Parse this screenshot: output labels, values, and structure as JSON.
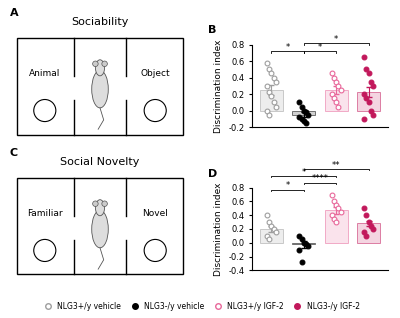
{
  "chart_data": [
    {
      "type": "bar",
      "panel": "B",
      "ylabel": "Discrimination index",
      "categories": [
        null,
        null,
        null,
        null
      ],
      "ylim": [
        -0.2,
        0.8
      ],
      "yticks": [
        {
          "value": -0.2,
          "label": "-0.2"
        },
        {
          "value": 0,
          "label": "0.0"
        },
        {
          "value": 0.2,
          "label": "0.2"
        },
        {
          "value": 0.4,
          "label": "0.4"
        },
        {
          "value": 0.6,
          "label": "0.6"
        },
        {
          "value": 0.8,
          "label": "0.8"
        }
      ],
      "tick_labels": "y",
      "legend": "lower center",
      "series": [
        {
          "name": "NLG3+/y vehicle",
          "color": "#9e9e9e",
          "marker": "circle_open",
          "values": [
            0.25,
            null,
            null,
            null
          ],
          "errors": [
            0.06,
            null,
            null,
            null
          ],
          "points": [
            0.58,
            0.5,
            0.45,
            0.4,
            0.35,
            0.3,
            0.22,
            0.18,
            0.1,
            0.05,
            0.0,
            -0.05
          ]
        },
        {
          "name": "NLG3-/y vehicle",
          "color": "#000000",
          "marker": "circle_filled",
          "values": [
            null,
            -0.05,
            null,
            null
          ],
          "errors": [
            null,
            0.03,
            null,
            null
          ],
          "points": [
            0.1,
            0.05,
            0.0,
            -0.02,
            -0.05,
            -0.08,
            -0.1,
            -0.12,
            -0.15
          ]
        },
        {
          "name": "NLG3+/y IGF-2",
          "color": "#e8679a",
          "marker": "circle_open",
          "values": [
            null,
            null,
            0.25,
            null
          ],
          "errors": [
            null,
            null,
            0.05,
            null
          ],
          "points": [
            0.45,
            0.4,
            0.35,
            0.3,
            0.25,
            0.2,
            0.15,
            0.1,
            0.05
          ]
        },
        {
          "name": "NLG3-/y IGF-2",
          "color": "#c2185b",
          "marker": "circle_filled",
          "values": [
            null,
            null,
            null,
            0.23
          ],
          "errors": [
            null,
            null,
            null,
            0.06
          ],
          "points": [
            0.65,
            0.5,
            0.45,
            0.35,
            0.3,
            0.2,
            0.15,
            0.1,
            0.0,
            -0.05,
            -0.1
          ]
        }
      ],
      "significance": [
        {
          "from": 0,
          "to": 1,
          "label": "*",
          "level": 0
        },
        {
          "from": 1,
          "to": 2,
          "label": "*",
          "level": 0
        },
        {
          "from": 1,
          "to": 3,
          "label": "*",
          "level": 1
        }
      ]
    },
    {
      "type": "bar",
      "panel": "D",
      "ylabel": "Discrimination index",
      "categories": [
        null,
        null,
        null,
        null
      ],
      "ylim": [
        -0.4,
        0.8
      ],
      "yticks": [
        {
          "value": -0.4,
          "label": "-0.4"
        },
        {
          "value": -0.2,
          "label": "-0.2"
        },
        {
          "value": 0,
          "label": "0.0"
        },
        {
          "value": 0.2,
          "label": "0.2"
        },
        {
          "value": 0.4,
          "label": "0.4"
        },
        {
          "value": 0.6,
          "label": "0.6"
        },
        {
          "value": 0.8,
          "label": "0.8"
        }
      ],
      "tick_labels": "y",
      "series": [
        {
          "name": "NLG3+/y vehicle",
          "color": "#9e9e9e",
          "marker": "circle_open",
          "values": [
            0.2,
            null,
            null,
            null
          ],
          "errors": [
            0.05,
            null,
            null,
            null
          ],
          "points": [
            0.4,
            0.3,
            0.25,
            0.2,
            0.15,
            0.1,
            0.05
          ]
        },
        {
          "name": "NLG3-/y vehicle",
          "color": "#000000",
          "marker": "circle_filled",
          "values": [
            null,
            -0.02,
            null,
            null
          ],
          "errors": [
            null,
            0.05,
            null,
            null
          ],
          "points": [
            0.1,
            0.05,
            0.0,
            -0.02,
            -0.05,
            -0.1,
            -0.28
          ]
        },
        {
          "name": "NLG3+/y IGF-2",
          "color": "#e8679a",
          "marker": "circle_open",
          "values": [
            null,
            null,
            0.47,
            null
          ],
          "errors": [
            null,
            null,
            0.05,
            null
          ],
          "points": [
            0.7,
            0.6,
            0.55,
            0.5,
            0.45,
            0.4,
            0.35,
            0.3
          ]
        },
        {
          "name": "NLG3-/y IGF-2",
          "color": "#c2185b",
          "marker": "circle_filled",
          "values": [
            null,
            null,
            null,
            0.28
          ],
          "errors": [
            null,
            null,
            null,
            0.04
          ],
          "points": [
            0.5,
            0.4,
            0.3,
            0.25,
            0.2,
            0.15,
            0.1
          ]
        }
      ],
      "significance": [
        {
          "from": 0,
          "to": 1,
          "label": "*",
          "level": 0
        },
        {
          "from": 1,
          "to": 2,
          "label": "****",
          "level": 1
        },
        {
          "from": 0,
          "to": 2,
          "label": "*",
          "level": 2
        },
        {
          "from": 1,
          "to": 3,
          "label": "**",
          "level": 3
        }
      ]
    }
  ],
  "diagrams": [
    {
      "panel": "A",
      "title": "Sociability",
      "left": "Animal",
      "right": "Object"
    },
    {
      "panel": "C",
      "title": "Social Novelty",
      "left": "Familiar",
      "right": "Novel"
    }
  ]
}
